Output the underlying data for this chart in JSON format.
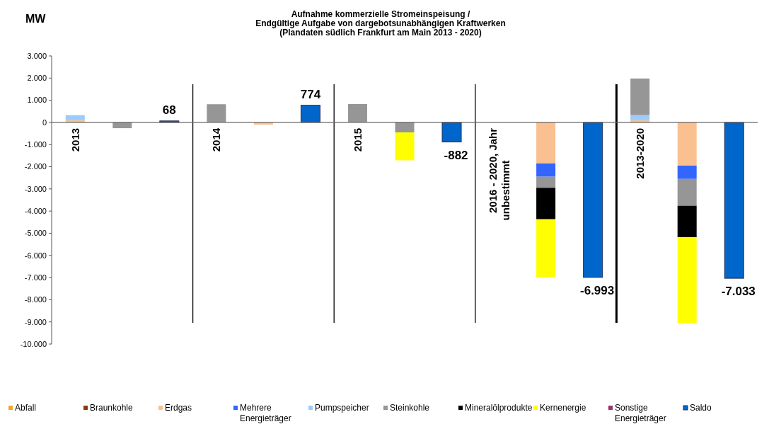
{
  "chart_data": {
    "type": "bar",
    "stacked": true,
    "title": "Aufnahme kommerzielle Stromeinspeisung /\nEndgültige Aufgabe von dargebotsunabhängigen Kraftwerken\n(Plandaten südlich Frankfurt am Main 2013 - 2020)",
    "ylabel": "MW",
    "categories": [
      null,
      null,
      null,
      null,
      null,
      null,
      null,
      null,
      null,
      null,
      null,
      null,
      null,
      null,
      null
    ],
    "series": [
      {
        "name": "Abfall",
        "color": "#f5a623",
        "values": [
          50,
          0,
          0,
          0,
          0,
          0,
          0,
          0,
          0,
          0,
          0,
          0,
          50,
          0,
          0
        ]
      },
      {
        "name": "Braunkohle",
        "color": "#8b3a0f",
        "values": [
          0,
          0,
          0,
          0,
          0,
          0,
          0,
          0,
          0,
          0,
          0,
          0,
          0,
          0,
          0
        ]
      },
      {
        "name": "Erdgas",
        "color": "#fac090",
        "values": [
          50,
          0,
          0,
          0,
          -100,
          0,
          0,
          0,
          0,
          0,
          -1850,
          0,
          50,
          -1950,
          0
        ]
      },
      {
        "name": "Mehrere Energieträger",
        "color": "#3366ff",
        "values": [
          0,
          0,
          0,
          0,
          0,
          0,
          0,
          0,
          0,
          0,
          -600,
          0,
          0,
          -600,
          0
        ]
      },
      {
        "name": "Pumpspeicher",
        "color": "#99ccff",
        "values": [
          230,
          0,
          0,
          0,
          0,
          0,
          0,
          0,
          0,
          0,
          0,
          0,
          230,
          0,
          0
        ]
      },
      {
        "name": "Steinkohle",
        "color": "#969696",
        "values": [
          0,
          -260,
          0,
          820,
          0,
          0,
          830,
          -450,
          0,
          0,
          -500,
          0,
          1650,
          -1210,
          0
        ]
      },
      {
        "name": "Mineralölprodukte",
        "color": "#000000",
        "values": [
          0,
          0,
          0,
          0,
          0,
          0,
          0,
          0,
          0,
          0,
          -1420,
          0,
          0,
          -1420,
          0
        ]
      },
      {
        "name": "Kernenergie",
        "color": "#ffff00",
        "values": [
          0,
          0,
          0,
          0,
          0,
          0,
          0,
          -1260,
          0,
          0,
          -2620,
          0,
          0,
          -3880,
          0
        ]
      },
      {
        "name": "Sonstige Energieträger",
        "color": "#993366",
        "values": [
          0,
          0,
          0,
          0,
          0,
          0,
          0,
          0,
          0,
          0,
          0,
          0,
          0,
          0,
          0
        ]
      },
      {
        "name": "Saldo",
        "color": "#0066cc",
        "values": [
          0,
          0,
          68,
          0,
          0,
          774,
          0,
          0,
          -882,
          0,
          0,
          -6993,
          0,
          0,
          -7033
        ],
        "value_labels": [
          null,
          null,
          "68",
          null,
          null,
          "774",
          null,
          null,
          "-882",
          null,
          null,
          "-6.993",
          null,
          null,
          "-7.033"
        ]
      }
    ],
    "ylim": [
      -10000,
      3000
    ],
    "yticks": [
      {
        "value": 3000,
        "label": "3.000"
      },
      {
        "value": 2000,
        "label": "2.000"
      },
      {
        "value": 1000,
        "label": "1.000"
      },
      0,
      {
        "value": -1000,
        "label": "-1.000"
      },
      {
        "value": -2000,
        "label": "-2.000"
      },
      {
        "value": -3000,
        "label": "-3.000"
      },
      {
        "value": -4000,
        "label": "-4.000"
      },
      {
        "value": -5000,
        "label": "-5.000"
      },
      {
        "value": -6000,
        "label": "-6.000"
      },
      {
        "value": -7000,
        "label": "-7.000"
      },
      {
        "value": -8000,
        "label": "-8.000"
      },
      {
        "value": -9000,
        "label": "-9.000"
      },
      {
        "value": -10000,
        "label": "-10.000"
      }
    ],
    "annotations": [
      "2013",
      "2014",
      "2015",
      "2016 - 2020, Jahr\nunbestimmt",
      "2013-2020"
    ],
    "legend": "bottom",
    "grid": false
  }
}
